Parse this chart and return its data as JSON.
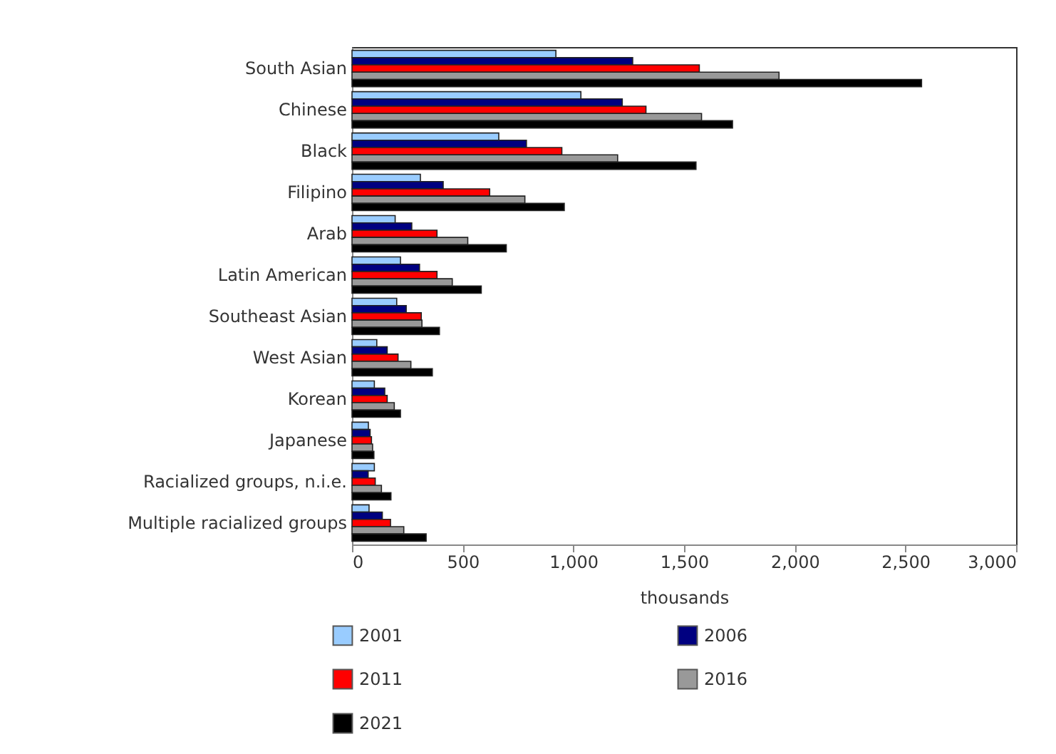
{
  "chart_data": {
    "type": "bar",
    "orientation": "horizontal",
    "xlabel": "thousands",
    "categories": [
      "South Asian",
      "Chinese",
      "Black",
      "Filipino",
      "Arab",
      "Latin American",
      "Southeast Asian",
      "West Asian",
      "Korean",
      "Japanese",
      "Racialized groups, n.i.e.",
      "Multiple racialized groups"
    ],
    "series": [
      {
        "name": "2001",
        "color": "#99ccff",
        "values": [
          921,
          1034,
          663,
          309,
          195,
          219,
          202,
          112,
          101,
          74,
          101,
          77
        ]
      },
      {
        "name": "2006",
        "color": "#000080",
        "values": [
          1268,
          1221,
          788,
          412,
          270,
          305,
          245,
          159,
          148,
          82,
          73,
          137
        ]
      },
      {
        "name": "2011",
        "color": "#ff0000",
        "values": [
          1569,
          1328,
          948,
          622,
          384,
          384,
          313,
          208,
          159,
          88,
          105,
          174
        ]
      },
      {
        "name": "2016",
        "color": "#999999",
        "values": [
          1929,
          1579,
          1200,
          781,
          523,
          453,
          316,
          266,
          191,
          93,
          133,
          234
        ]
      },
      {
        "name": "2021",
        "color": "#000000",
        "values": [
          2573,
          1719,
          1554,
          959,
          697,
          584,
          395,
          363,
          219,
          99,
          176,
          335
        ]
      }
    ],
    "xlim": [
      0,
      3000
    ],
    "xticks": [
      0,
      500,
      {
        "value": 1000,
        "label": "1,000"
      },
      {
        "value": 1500,
        "label": "1,500"
      },
      {
        "value": 2000,
        "label": "2,000"
      },
      {
        "value": 2500,
        "label": "2,500"
      },
      {
        "value": 3000,
        "label": "3,000"
      }
    ],
    "grid": false,
    "legend": "bottom"
  }
}
